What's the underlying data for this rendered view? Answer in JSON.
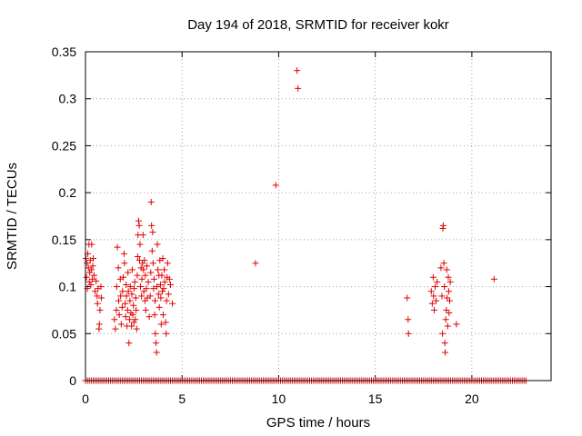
{
  "chart_data": {
    "type": "scatter",
    "title": "Day 194 of 2018, SRMTID for receiver kokr",
    "xlabel": "GPS time / hours",
    "ylabel": "SRMTID / TECUs",
    "xlim": [
      0,
      24.1
    ],
    "ylim": [
      0,
      0.35
    ],
    "xticks": [
      0,
      5,
      10,
      15,
      20
    ],
    "xtick_labels": [
      "0",
      "5",
      "10",
      "15",
      "20"
    ],
    "yticks": [
      0,
      0.05,
      0.1,
      0.15,
      0.2,
      0.25,
      0.3,
      0.35
    ],
    "ytick_labels": [
      "0",
      "0.05",
      "0.1",
      "0.15",
      "0.2",
      "0.25",
      "0.3",
      "0.35"
    ],
    "grid": true,
    "marker": "+",
    "color": "#e00000",
    "zero_band": {
      "x_start": 0.0,
      "x_end": 22.8,
      "step": 0.1,
      "y": 0
    },
    "series": [
      {
        "name": "SRMTID",
        "points": [
          [
            0.02,
            0.13
          ],
          [
            0.05,
            0.11
          ],
          [
            0.08,
            0.125
          ],
          [
            0.1,
            0.098
          ],
          [
            0.12,
            0.135
          ],
          [
            0.15,
            0.12
          ],
          [
            0.18,
            0.145
          ],
          [
            0.2,
            0.105
          ],
          [
            0.22,
            0.115
          ],
          [
            0.25,
            0.128
          ],
          [
            0.28,
            0.102
          ],
          [
            0.3,
            0.118
          ],
          [
            0.32,
            0.145
          ],
          [
            0.35,
            0.108
          ],
          [
            0.38,
            0.122
          ],
          [
            0.4,
            0.13
          ],
          [
            0.45,
            0.112
          ],
          [
            0.5,
            0.095
          ],
          [
            0.55,
            0.106
          ],
          [
            0.6,
            0.09
          ],
          [
            0.62,
            0.082
          ],
          [
            0.65,
            0.098
          ],
          [
            0.7,
            0.055
          ],
          [
            0.72,
            0.06
          ],
          [
            0.75,
            0.075
          ],
          [
            0.8,
            0.1
          ],
          [
            0.82,
            0.088
          ],
          [
            1.5,
            0.065
          ],
          [
            1.55,
            0.055
          ],
          [
            1.6,
            0.075
          ],
          [
            1.62,
            0.1
          ],
          [
            1.65,
            0.142
          ],
          [
            1.7,
            0.12
          ],
          [
            1.72,
            0.085
          ],
          [
            1.75,
            0.07
          ],
          [
            1.8,
            0.108
          ],
          [
            1.82,
            0.09
          ],
          [
            1.85,
            0.06
          ],
          [
            1.9,
            0.078
          ],
          [
            1.92,
            0.095
          ],
          [
            1.95,
            0.11
          ],
          [
            2.0,
            0.135
          ],
          [
            2.02,
            0.125
          ],
          [
            2.05,
            0.082
          ],
          [
            2.08,
            0.068
          ],
          [
            2.1,
            0.102
          ],
          [
            2.12,
            0.09
          ],
          [
            2.15,
            0.058
          ],
          [
            2.18,
            0.075
          ],
          [
            2.2,
            0.115
          ],
          [
            2.22,
            0.095
          ],
          [
            2.25,
            0.04
          ],
          [
            2.28,
            0.065
          ],
          [
            2.3,
            0.085
          ],
          [
            2.32,
            0.1
          ],
          [
            2.35,
            0.072
          ],
          [
            2.38,
            0.058
          ],
          [
            2.4,
            0.092
          ],
          [
            2.42,
            0.118
          ],
          [
            2.45,
            0.07
          ],
          [
            2.48,
            0.08
          ],
          [
            2.5,
            0.062
          ],
          [
            2.52,
            0.098
          ],
          [
            2.55,
            0.105
          ],
          [
            2.58,
            0.065
          ],
          [
            2.6,
            0.088
          ],
          [
            2.62,
            0.075
          ],
          [
            2.65,
            0.055
          ],
          [
            2.68,
            0.112
          ],
          [
            2.7,
            0.132
          ],
          [
            2.72,
            0.155
          ],
          [
            2.75,
            0.17
          ],
          [
            2.78,
            0.165
          ],
          [
            2.8,
            0.128
          ],
          [
            2.82,
            0.145
          ],
          [
            2.85,
            0.1
          ],
          [
            2.88,
            0.12
          ],
          [
            2.9,
            0.09
          ],
          [
            2.92,
            0.108
          ],
          [
            2.95,
            0.125
          ],
          [
            2.98,
            0.155
          ],
          [
            3.0,
            0.118
          ],
          [
            3.02,
            0.095
          ],
          [
            3.05,
            0.128
          ],
          [
            3.08,
            0.085
          ],
          [
            3.1,
            0.112
          ],
          [
            3.12,
            0.075
          ],
          [
            3.15,
            0.098
          ],
          [
            3.18,
            0.122
          ],
          [
            3.2,
            0.088
          ],
          [
            3.25,
            0.105
          ],
          [
            3.3,
            0.068
          ],
          [
            3.35,
            0.09
          ],
          [
            3.38,
            0.115
          ],
          [
            3.4,
            0.19
          ],
          [
            3.42,
            0.165
          ],
          [
            3.45,
            0.138
          ],
          [
            3.48,
            0.158
          ],
          [
            3.5,
            0.125
          ],
          [
            3.52,
            0.098
          ],
          [
            3.55,
            0.108
          ],
          [
            3.58,
            0.07
          ],
          [
            3.6,
            0.085
          ],
          [
            3.62,
            0.05
          ],
          [
            3.65,
            0.04
          ],
          [
            3.68,
            0.03
          ],
          [
            3.7,
            0.1
          ],
          [
            3.72,
            0.145
          ],
          [
            3.75,
            0.118
          ],
          [
            3.78,
            0.092
          ],
          [
            3.8,
            0.112
          ],
          [
            3.82,
            0.078
          ],
          [
            3.85,
            0.128
          ],
          [
            3.88,
            0.102
          ],
          [
            3.9,
            0.088
          ],
          [
            3.92,
            0.06
          ],
          [
            3.95,
            0.112
          ],
          [
            3.98,
            0.095
          ],
          [
            4.0,
            0.13
          ],
          [
            4.02,
            0.07
          ],
          [
            4.05,
            0.098
          ],
          [
            4.08,
            0.118
          ],
          [
            4.1,
            0.105
          ],
          [
            4.15,
            0.062
          ],
          [
            4.18,
            0.05
          ],
          [
            4.2,
            0.085
          ],
          [
            4.22,
            0.11
          ],
          [
            4.25,
            0.125
          ],
          [
            4.3,
            0.092
          ],
          [
            4.35,
            0.108
          ],
          [
            4.4,
            0.102
          ],
          [
            4.5,
            0.082
          ],
          [
            8.8,
            0.125
          ],
          [
            9.85,
            0.208
          ],
          [
            10.95,
            0.33
          ],
          [
            11.0,
            0.311
          ],
          [
            16.65,
            0.088
          ],
          [
            16.7,
            0.065
          ],
          [
            16.72,
            0.05
          ],
          [
            17.9,
            0.095
          ],
          [
            17.95,
            0.082
          ],
          [
            18.0,
            0.11
          ],
          [
            18.02,
            0.09
          ],
          [
            18.05,
            0.075
          ],
          [
            18.1,
            0.1
          ],
          [
            18.15,
            0.085
          ],
          [
            18.2,
            0.105
          ],
          [
            18.4,
            0.12
          ],
          [
            18.45,
            0.09
          ],
          [
            18.48,
            0.05
          ],
          [
            18.5,
            0.162
          ],
          [
            18.52,
            0.165
          ],
          [
            18.55,
            0.125
          ],
          [
            18.58,
            0.1
          ],
          [
            18.6,
            0.04
          ],
          [
            18.62,
            0.03
          ],
          [
            18.65,
            0.065
          ],
          [
            18.68,
            0.075
          ],
          [
            18.7,
            0.118
          ],
          [
            18.72,
            0.088
          ],
          [
            18.75,
            0.058
          ],
          [
            18.78,
            0.11
          ],
          [
            18.8,
            0.095
          ],
          [
            18.82,
            0.072
          ],
          [
            18.85,
            0.085
          ],
          [
            18.88,
            0.105
          ],
          [
            19.2,
            0.06
          ],
          [
            21.15,
            0.108
          ]
        ]
      }
    ]
  }
}
